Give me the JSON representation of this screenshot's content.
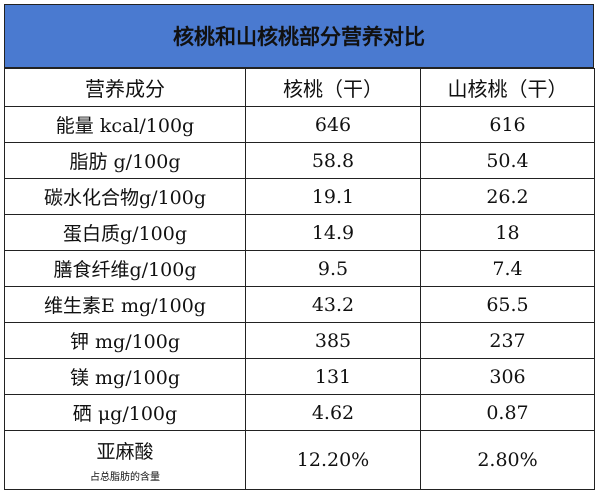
{
  "header": {
    "title": "核桃和山核桃部分营养对比"
  },
  "table": {
    "columns": [
      "营养成分",
      "核桃（干）",
      "山核桃（干）"
    ],
    "rows": [
      [
        "能量 kcal/100g",
        "646",
        "616"
      ],
      [
        "脂肪 g/100g",
        "58.8",
        "50.4"
      ],
      [
        "碳水化合物g/100g",
        "19.1",
        "26.2"
      ],
      [
        "蛋白质g/100g",
        "14.9",
        "18"
      ],
      [
        "膳食纤维g/100g",
        "9.5",
        "7.4"
      ],
      [
        "维生素E mg/100g",
        "43.2",
        "65.5"
      ],
      [
        "钾 mg/100g",
        "385",
        "237"
      ],
      [
        "镁 mg/100g",
        "131",
        "306"
      ],
      [
        "硒 μg/100g",
        "4.62",
        "0.87"
      ],
      [
        "亚麻酸",
        "12.20%",
        "2.80%"
      ]
    ],
    "notes": {
      "9": "占总脂肪的含量"
    }
  }
}
